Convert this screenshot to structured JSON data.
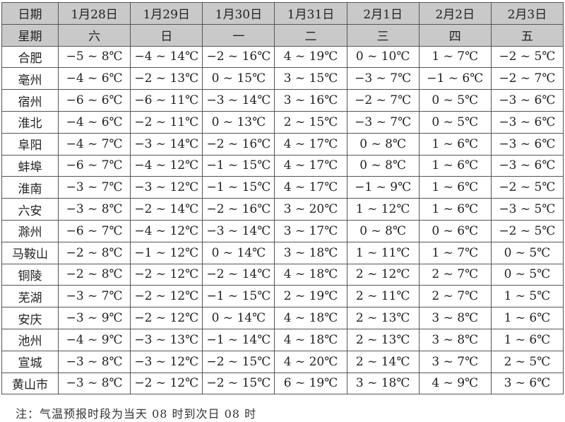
{
  "table": {
    "date_label": "日期",
    "weekday_label": "星期",
    "dates": [
      "1月28日",
      "1月29日",
      "1月30日",
      "1月31日",
      "2月1日",
      "2月2日",
      "2月3日"
    ],
    "weekdays": [
      "六",
      "日",
      "一",
      "二",
      "三",
      "四",
      "五"
    ],
    "rows": [
      {
        "city": "合肥",
        "temps": [
          "−5 ~ 8℃",
          "−4 ~ 14℃",
          "−2 ~ 16℃",
          "4 ~ 19℃",
          "0 ~ 10℃",
          "1 ~ 7℃",
          "−2 ~ 5℃"
        ]
      },
      {
        "city": "亳州",
        "temps": [
          "−4 ~ 6℃",
          "−2 ~ 13℃",
          "0 ~ 15℃",
          "3 ~ 15℃",
          "−3 ~ 7℃",
          "−1 ~ 6℃",
          "−2 ~ 7℃"
        ]
      },
      {
        "city": "宿州",
        "temps": [
          "−6 ~ 6℃",
          "−6 ~ 11℃",
          "−3 ~ 14℃",
          "3 ~ 16℃",
          "−2 ~ 7℃",
          "0 ~ 5℃",
          "−3 ~ 6℃"
        ]
      },
      {
        "city": "淮北",
        "temps": [
          "−4 ~ 6℃",
          "−2 ~ 11℃",
          "0 ~ 13℃",
          "2 ~ 15℃",
          "−3 ~ 7℃",
          "0 ~ 5℃",
          "−3 ~ 6℃"
        ]
      },
      {
        "city": "阜阳",
        "temps": [
          "−4 ~ 7℃",
          "−3 ~ 14℃",
          "−2 ~ 16℃",
          "4 ~ 17℃",
          "0 ~ 8℃",
          "1 ~ 6℃",
          "−3 ~ 6℃"
        ]
      },
      {
        "city": "蚌埠",
        "temps": [
          "−6 ~ 7℃",
          "−4 ~ 12℃",
          "−1 ~ 15℃",
          "4 ~ 17℃",
          "0 ~ 8℃",
          "1 ~ 6℃",
          "−3 ~ 6℃"
        ]
      },
      {
        "city": "淮南",
        "temps": [
          "−3 ~ 7℃",
          "−3 ~ 12℃",
          "−1 ~ 15℃",
          "4 ~ 17℃",
          "−1 ~ 9℃",
          "1 ~ 6℃",
          "−2 ~ 5℃"
        ]
      },
      {
        "city": "六安",
        "temps": [
          "−3 ~ 8℃",
          "−2 ~ 14℃",
          "−2 ~ 16℃",
          "3 ~ 20℃",
          "1 ~ 12℃",
          "1 ~ 6℃",
          "−3 ~ 5℃"
        ]
      },
      {
        "city": "滁州",
        "temps": [
          "−6 ~ 7℃",
          "−4 ~ 12℃",
          "−3 ~ 14℃",
          "3 ~ 17℃",
          "0 ~ 8℃",
          "0 ~ 6℃",
          "−2 ~ 5℃"
        ]
      },
      {
        "city": "马鞍山",
        "temps": [
          "−2 ~ 8℃",
          "−1 ~ 12℃",
          "0 ~ 14℃",
          "3 ~ 18℃",
          "1 ~ 11℃",
          "1 ~ 7℃",
          "0 ~ 5℃"
        ]
      },
      {
        "city": "铜陵",
        "temps": [
          "−2 ~ 8℃",
          "−2 ~ 12℃",
          "−2 ~ 14℃",
          "4 ~ 18℃",
          "2 ~ 12℃",
          "2 ~ 7℃",
          "0 ~ 5℃"
        ]
      },
      {
        "city": "芜湖",
        "temps": [
          "−3 ~ 7℃",
          "−2 ~ 12℃",
          "−1 ~ 15℃",
          "2 ~ 19℃",
          "2 ~ 11℃",
          "2 ~ 7℃",
          "1 ~ 5℃"
        ]
      },
      {
        "city": "安庆",
        "temps": [
          "−3 ~ 9℃",
          "−2 ~ 12℃",
          "0 ~ 14℃",
          "4 ~ 18℃",
          "2 ~ 13℃",
          "3 ~ 8℃",
          "1 ~ 6℃"
        ]
      },
      {
        "city": "池州",
        "temps": [
          "−4 ~ 9℃",
          "−3 ~ 13℃",
          "−1 ~ 14℃",
          "4 ~ 18℃",
          "2 ~ 13℃",
          "3 ~ 8℃",
          "1 ~ 6℃"
        ]
      },
      {
        "city": "宣城",
        "temps": [
          "−3 ~ 8℃",
          "−3 ~ 12℃",
          "−2 ~ 15℃",
          "4 ~ 20℃",
          "2 ~ 14℃",
          "3 ~ 7℃",
          "2 ~ 5℃"
        ]
      },
      {
        "city": "黄山市",
        "temps": [
          "−3 ~ 8℃",
          "−2 ~ 12℃",
          "−2 ~ 15℃",
          "6 ~ 19℃",
          "3 ~ 18℃",
          "4 ~ 9℃",
          "3 ~ 6℃"
        ]
      }
    ]
  },
  "note": "注：气温预报时段为当天 08 时到次日 08 时",
  "colors": {
    "header_bg": "#c9c9c9",
    "border": "#555555"
  }
}
